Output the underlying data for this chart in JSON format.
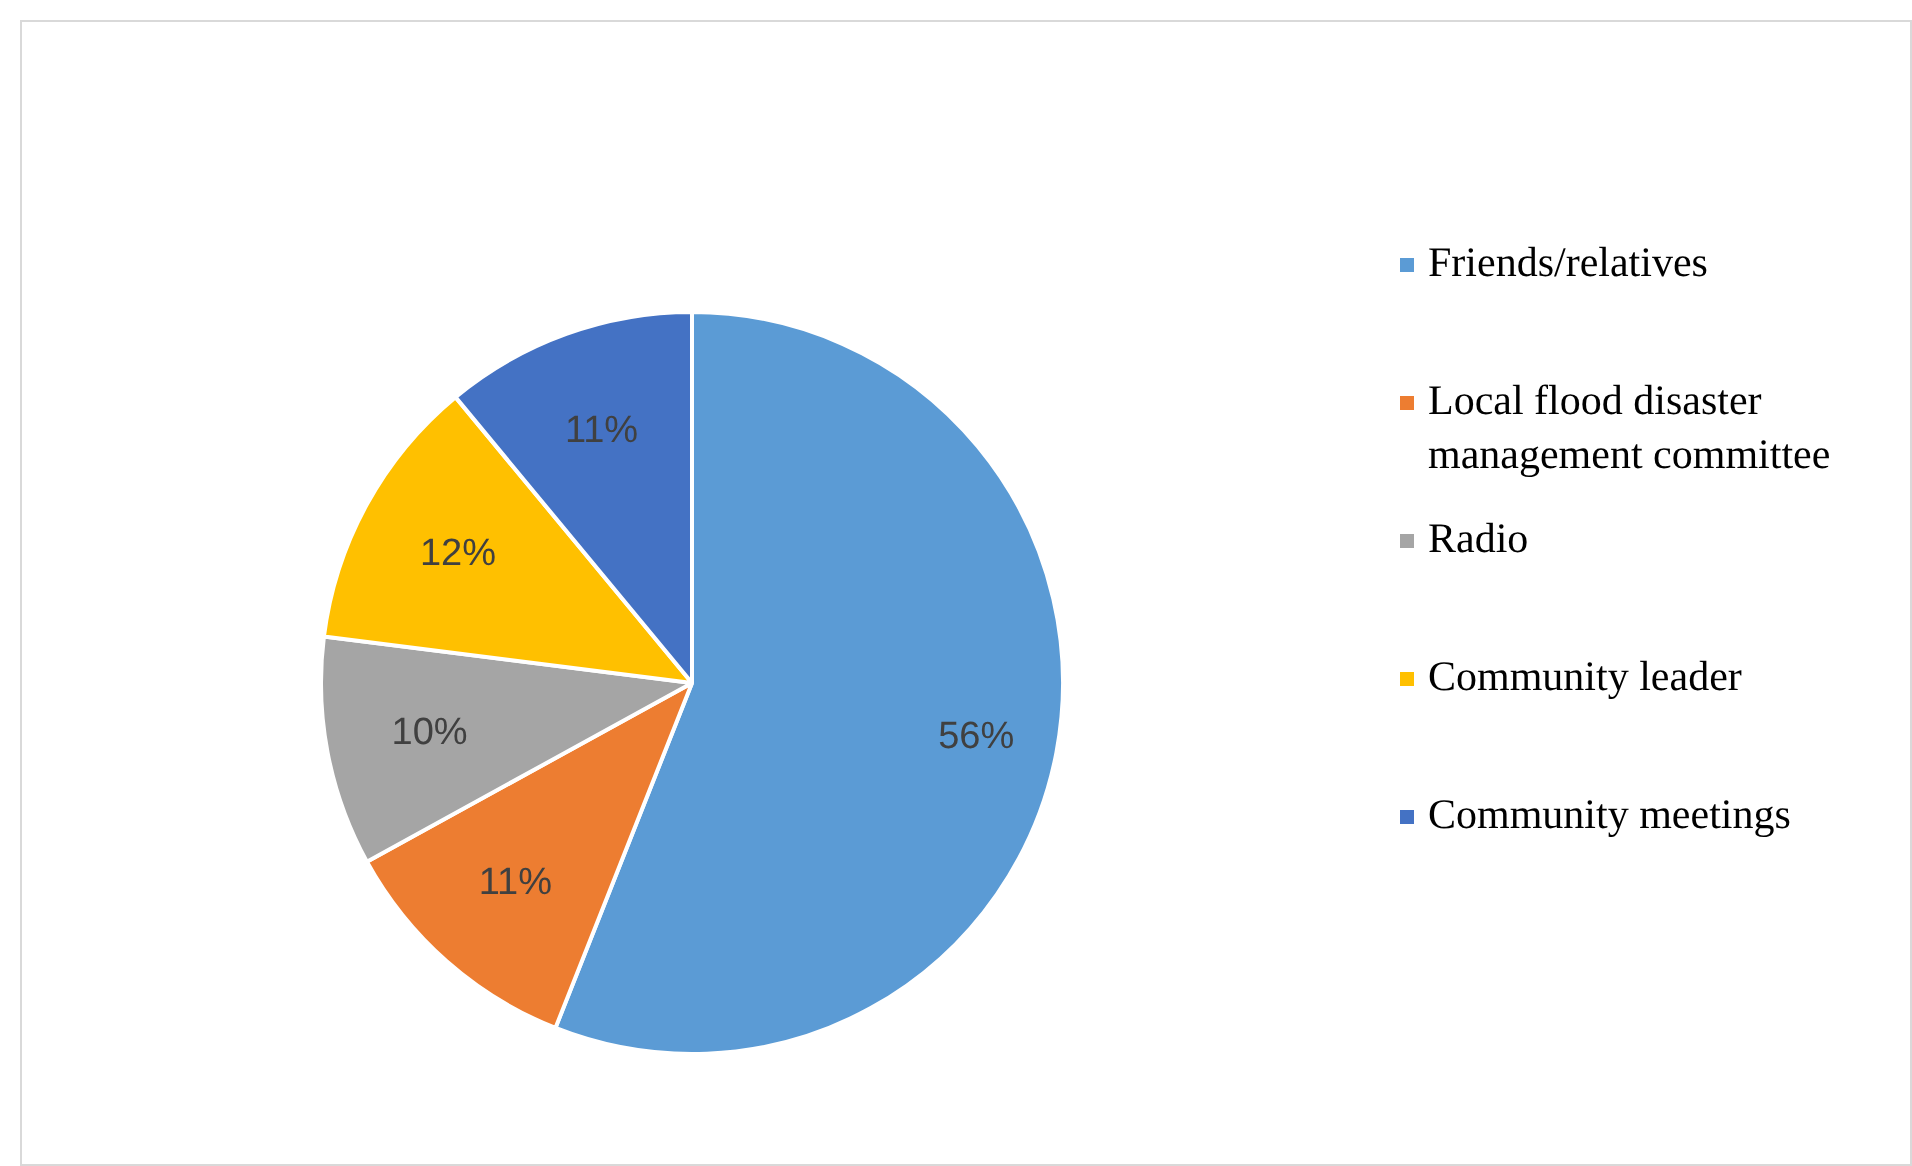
{
  "chart_data": {
    "type": "pie",
    "categories": [
      "Friends/relatives",
      "Local flood disaster management committee",
      "Radio",
      "Community leader",
      "Community meetings"
    ],
    "values": [
      56,
      11,
      10,
      12,
      11
    ],
    "colors": [
      "#5b9bd5",
      "#ed7d31",
      "#a5a5a5",
      "#ffc000",
      "#4472c4"
    ],
    "value_labels": [
      "56%",
      "11%",
      "10%",
      "12%",
      "11%"
    ],
    "legend": "right"
  }
}
